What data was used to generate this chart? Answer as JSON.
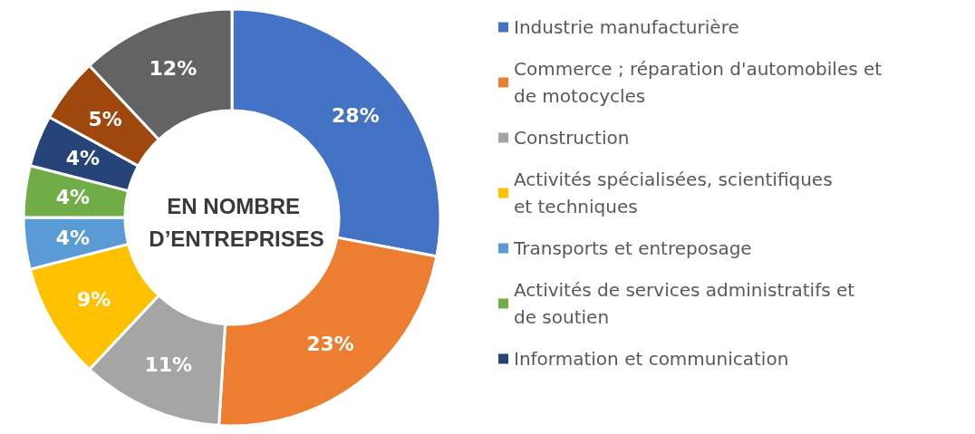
{
  "chart_data": {
    "type": "donut",
    "title": "EN NOMBRE D’ENTREPRISES",
    "categories": [
      "Industrie manufacturière",
      "Commerce ; réparation d'automobiles et de motocycles",
      "Construction",
      "Activités spécialisées, scientifiques et techniques",
      "Transports et entreposage",
      "Activités de services administratifs et de soutien",
      "Information et communication",
      null,
      null
    ],
    "values": [
      28,
      23,
      11,
      9,
      4,
      4,
      4,
      5,
      12
    ],
    "value_labels": [
      "28%",
      "23%",
      "11%",
      "9%",
      "4%",
      "4%",
      "4%",
      "5%",
      "12%"
    ],
    "colors": [
      "#4472c4",
      "#ed7d31",
      "#a5a5a5",
      "#ffc000",
      "#5b9bd5",
      "#70ad47",
      "#264478",
      "#9e480e",
      "#636363"
    ],
    "legend": "right"
  }
}
